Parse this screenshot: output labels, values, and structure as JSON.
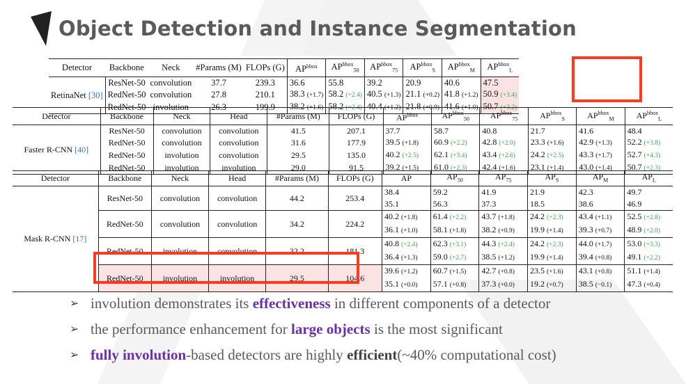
{
  "title": "Object Detection and Instance Segmentation",
  "colors": {
    "accent_red": "#ff3b1f",
    "highlight_pink": "#fbe3e3",
    "purple": "#6b2fa8",
    "green_delta": "#3aa64a",
    "ref_blue": "#3a6fc4"
  },
  "table1": {
    "headers": [
      "Detector",
      "Backbone",
      "Neck",
      "#Params (M)",
      "FLOPs (G)",
      "AP",
      "AP",
      "AP",
      "AP",
      "AP",
      "AP"
    ],
    "header_sup": [
      "",
      "",
      "",
      "",
      "",
      "bbox",
      "bbox",
      "bbox",
      "bbox",
      "bbox",
      "bbox"
    ],
    "header_sub": [
      "",
      "",
      "",
      "",
      "",
      "",
      "50",
      "75",
      "S",
      "M",
      "L"
    ],
    "detector": "RetinaNet",
    "detector_ref": "[30]",
    "rows": [
      {
        "backbone": "ResNet-50",
        "neck": "convolution",
        "params": "37.7",
        "flops": "239.3",
        "ap": [
          "36.6",
          "55.8",
          "39.2",
          "20.9",
          "40.6",
          "47.5"
        ],
        "delta": [
          "",
          "",
          "",
          "",
          "",
          ""
        ]
      },
      {
        "backbone": "RedNet-50",
        "neck": "convolution",
        "params": "27.8",
        "flops": "210.1",
        "ap": [
          "38.3",
          "58.2",
          "40.5",
          "21.1",
          "41.8",
          "50.9"
        ],
        "delta": [
          "(+1.7)",
          "(+2.4)",
          "(+1.3)",
          "(+0.2)",
          "(+1.2)",
          "(+3.4)"
        ]
      },
      {
        "backbone": "RedNet-50",
        "neck": "involution",
        "params": "26.3",
        "flops": "199.9",
        "ap": [
          "38.2",
          "58.2",
          "40.4",
          "21.8",
          "41.6",
          "50.7"
        ],
        "delta": [
          "(+1.6)",
          "(+2.4)",
          "(+1.2)",
          "(+0.9)",
          "(+1.0)",
          "(+3.2)"
        ]
      }
    ]
  },
  "table2": {
    "headers": [
      "Detector",
      "Backbone",
      "Neck",
      "Head",
      "#Params (M)",
      "FLOPs (G)",
      "AP",
      "AP",
      "AP",
      "AP",
      "AP",
      "AP"
    ],
    "header_sup": [
      "",
      "",
      "",
      "",
      "",
      "",
      "bbox",
      "bbox",
      "bbox",
      "bbox",
      "bbox",
      "bbox"
    ],
    "header_sub": [
      "",
      "",
      "",
      "",
      "",
      "",
      "",
      "50",
      "75",
      "S",
      "M",
      "L"
    ],
    "detector": "Faster R-CNN",
    "detector_ref": "[40]",
    "rows": [
      {
        "backbone": "ResNet-50",
        "neck": "convolution",
        "head": "convolution",
        "params": "41.5",
        "flops": "207.1",
        "ap": [
          "37.7",
          "58.7",
          "40.8",
          "21.7",
          "41.6",
          "48.4"
        ],
        "delta": [
          "",
          "",
          "",
          "",
          "",
          ""
        ]
      },
      {
        "backbone": "RedNet-50",
        "neck": "convolution",
        "head": "convolution",
        "params": "31.6",
        "flops": "177.9",
        "ap": [
          "39.5",
          "60.9",
          "42.8",
          "23.3",
          "42.9",
          "52.2"
        ],
        "delta": [
          "(+1.8)",
          "(+2.2)",
          "(+2.0)",
          "(+1.6)",
          "(+1.3)",
          "(+3.8)"
        ]
      },
      {
        "backbone": "RedNet-50",
        "neck": "involution",
        "head": "convolution",
        "params": "29.5",
        "flops": "135.0",
        "ap": [
          "40.2",
          "62.1",
          "43.4",
          "24.2",
          "43.3",
          "52.7"
        ],
        "delta": [
          "(+2.5)",
          "(+3.4)",
          "(+2.6)",
          "(+2.5)",
          "(+1.7)",
          "(+4.3)"
        ]
      },
      {
        "backbone": "RedNet-50",
        "neck": "involution",
        "head": "involution",
        "params": "29.0",
        "flops": "91.5",
        "ap": [
          "39.2",
          "61.0",
          "42.4",
          "23.1",
          "43.0",
          "50.7"
        ],
        "delta": [
          "(+1.5)",
          "(+2.3)",
          "(+1.6)",
          "(+1.4)",
          "(+1.4)",
          "(+2.3)"
        ]
      }
    ]
  },
  "table3": {
    "headers": [
      "Detector",
      "Backbone",
      "Neck",
      "Head",
      "#Params (M)",
      "FLOPs (G)",
      "AP",
      "AP",
      "AP",
      "AP",
      "AP",
      "AP"
    ],
    "header_sub": [
      "",
      "",
      "",
      "",
      "",
      "",
      "",
      "50",
      "75",
      "S",
      "M",
      "L"
    ],
    "detector": "Mask R-CNN",
    "detector_ref": "[17]",
    "rows": [
      {
        "backbone": "ResNet-50",
        "neck": "convolution",
        "head": "convolution",
        "params": "44.2",
        "flops": "253.4",
        "bbox": [
          "38.4",
          "59.2",
          "41.9",
          "21.9",
          "42.3",
          "49.7"
        ],
        "bbox_delta": [
          "",
          "",
          "",
          "",
          "",
          ""
        ],
        "mask": [
          "35.1",
          "56.3",
          "37.3",
          "18.5",
          "38.6",
          "46.9"
        ],
        "mask_delta": [
          "",
          "",
          "",
          "",
          "",
          ""
        ]
      },
      {
        "backbone": "RedNet-50",
        "neck": "convolution",
        "head": "convolution",
        "params": "34.2",
        "flops": "224.2",
        "bbox": [
          "40.2",
          "61.4",
          "43.7",
          "24.2",
          "43.4",
          "52.5"
        ],
        "bbox_delta": [
          "(+1.8)",
          "(+2.2)",
          "(+1.8)",
          "(+2.3)",
          "(+1.1)",
          "(+2.8)"
        ],
        "mask": [
          "36.1",
          "58.1",
          "38.2",
          "19.9",
          "39.3",
          "48.9"
        ],
        "mask_delta": [
          "(+1.0)",
          "(+1.8)",
          "(+0.9)",
          "(+1.4)",
          "(+0.7)",
          "(+2.0)"
        ]
      },
      {
        "backbone": "RedNet-50",
        "neck": "involution",
        "head": "convolution",
        "params": "32.2",
        "flops": "181.3",
        "bbox": [
          "40.8",
          "62.3",
          "44.3",
          "24.2",
          "44.0",
          "53.0"
        ],
        "bbox_delta": [
          "(+2.4)",
          "(+3.1)",
          "(+2.4)",
          "(+2.3)",
          "(+1.7)",
          "(+3.3)"
        ],
        "mask": [
          "36.4",
          "59.0",
          "38.5",
          "19.9",
          "39.4",
          "49.1"
        ],
        "mask_delta": [
          "(+1.3)",
          "(+2.7)",
          "(+1.2)",
          "(+1.4)",
          "(+0.8)",
          "(+2.2)"
        ]
      },
      {
        "backbone": "RedNet-50",
        "neck": "involution",
        "head": "involution",
        "params": "29.5",
        "flops": "104.6",
        "bbox": [
          "39.6",
          "60.7",
          "42.7",
          "23.5",
          "43.1",
          "51.1"
        ],
        "bbox_delta": [
          "(+1.2)",
          "(+1.5)",
          "(+0.8)",
          "(+1.6)",
          "(+0.8)",
          "(+1.4)"
        ],
        "mask": [
          "35.1",
          "57.1",
          "37.3",
          "19.2",
          "38.5",
          "47.3"
        ],
        "mask_delta": [
          "(+0.0)",
          "(+0.8)",
          "(+0.0)",
          "(+0.7)",
          "(−0.1)",
          "(+0.4)"
        ]
      }
    ]
  },
  "bullets": [
    {
      "parts": [
        {
          "text": "involution demonstrates its ",
          "style": "plain"
        },
        {
          "text": "effectiveness",
          "style": "purple"
        },
        {
          "text": " in different components of a detector",
          "style": "plain"
        }
      ]
    },
    {
      "parts": [
        {
          "text": "the performance enhancement for ",
          "style": "plain"
        },
        {
          "text": "large objects",
          "style": "purple"
        },
        {
          "text": " is the most significant",
          "style": "plain"
        }
      ]
    },
    {
      "parts": [
        {
          "text": "fully involution",
          "style": "purple"
        },
        {
          "text": "-based detectors are highly ",
          "style": "plain"
        },
        {
          "text": "efficient",
          "style": "bold"
        },
        {
          "text": "(~40% computational cost)",
          "style": "plain"
        }
      ]
    }
  ]
}
